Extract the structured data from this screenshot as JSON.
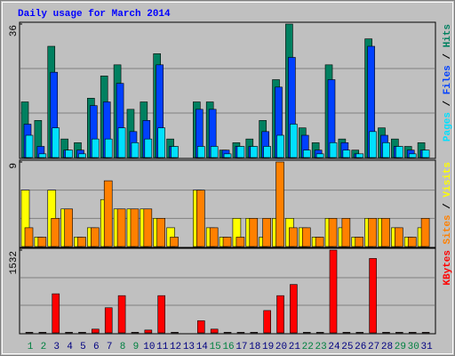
{
  "chart_data": {
    "type": "bar",
    "title": "Daily usage for March 2014",
    "title_color": "#0000ff",
    "categories": [
      "1",
      "2",
      "3",
      "4",
      "5",
      "6",
      "7",
      "8",
      "9",
      "10",
      "11",
      "12",
      "13",
      "14",
      "15",
      "16",
      "17",
      "18",
      "19",
      "20",
      "21",
      "22",
      "23",
      "24",
      "25",
      "26",
      "27",
      "28",
      "29",
      "30",
      "31"
    ],
    "category_colors": [
      "#008040",
      "#008040",
      "#000080",
      "#000080",
      "#000080",
      "#000080",
      "#000080",
      "#008040",
      "#008040",
      "#000080",
      "#000080",
      "#000080",
      "#000080",
      "#000080",
      "#008040",
      "#008040",
      "#000080",
      "#000080",
      "#000080",
      "#000080",
      "#000080",
      "#008040",
      "#008040",
      "#000080",
      "#000080",
      "#000080",
      "#000080",
      "#000080",
      "#008040",
      "#008040",
      "#000080"
    ],
    "legend_separator": " / ",
    "grid": true,
    "grid_divisions": 3,
    "panels": [
      {
        "ylim": [
          0,
          36
        ],
        "yticks": [
          36
        ],
        "series": [
          {
            "name": "Hits",
            "color": "#008060",
            "values": [
              15,
              10,
              30,
              5,
              4,
              16,
              22,
              25,
              13,
              15,
              28,
              5,
              0,
              15,
              15,
              2,
              4,
              5,
              10,
              21,
              36,
              8,
              4,
              25,
              5,
              2,
              32,
              8,
              5,
              3,
              4
            ]
          },
          {
            "name": "Files",
            "color": "#0040ff",
            "values": [
              9,
              3,
              23,
              2,
              2,
              14,
              15,
              20,
              7,
              10,
              25,
              3,
              0,
              13,
              13,
              2,
              3,
              3,
              7,
              19,
              27,
              6,
              2,
              21,
              4,
              1,
              30,
              6,
              3,
              2,
              2
            ]
          },
          {
            "name": "Pages",
            "color": "#00e0ff",
            "values": [
              6,
              1,
              8,
              2,
              1,
              5,
              5,
              8,
              4,
              5,
              8,
              3,
              0,
              3,
              3,
              1,
              3,
              3,
              3,
              6,
              9,
              2,
              1,
              4,
              2,
              1,
              7,
              4,
              3,
              1,
              2
            ]
          }
        ]
      },
      {
        "ylim": [
          0,
          9
        ],
        "yticks": [
          9
        ],
        "series": [
          {
            "name": "Visits",
            "color": "#ffff00",
            "values": [
              6,
              1,
              6,
              4,
              1,
              2,
              5,
              4,
              4,
              4,
              3,
              2,
              0,
              6,
              2,
              1,
              3,
              3,
              1,
              3,
              3,
              2,
              1,
              3,
              2,
              1,
              3,
              3,
              2,
              1,
              2
            ]
          },
          {
            "name": "Sites",
            "color": "#ff8000",
            "values": [
              2,
              1,
              3,
              4,
              1,
              2,
              7,
              4,
              4,
              4,
              3,
              1,
              0,
              6,
              2,
              1,
              1,
              3,
              3,
              9,
              2,
              2,
              1,
              3,
              3,
              1,
              3,
              3,
              2,
              1,
              3
            ]
          }
        ]
      },
      {
        "ylim": [
          0,
          1532
        ],
        "yticks": [
          1532
        ],
        "series": [
          {
            "name": "KBytes",
            "color": "#ff0000",
            "values": [
              10,
              10,
              723,
              10,
              10,
              69,
              465,
              689,
              10,
              52,
              689,
              10,
              0,
              224,
              69,
              10,
              10,
              10,
              413,
              689,
              895,
              10,
              10,
              1532,
              10,
              10,
              1377,
              10,
              10,
              10,
              10
            ]
          }
        ]
      }
    ]
  }
}
